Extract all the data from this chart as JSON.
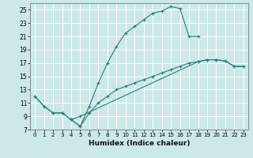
{
  "title": "",
  "xlabel": "Humidex (Indice chaleur)",
  "bg_color": "#cce8e8",
  "grid_color": "#ffffff",
  "line_color": "#2a7d78",
  "xlim": [
    -0.5,
    23.5
  ],
  "ylim": [
    7,
    26
  ],
  "xticks": [
    0,
    1,
    2,
    3,
    4,
    5,
    6,
    7,
    8,
    9,
    10,
    11,
    12,
    13,
    14,
    15,
    16,
    17,
    18,
    19,
    20,
    21,
    22,
    23
  ],
  "yticks": [
    7,
    9,
    11,
    13,
    15,
    17,
    19,
    21,
    23,
    25
  ],
  "line1_x": [
    0,
    1,
    2,
    3,
    4,
    5,
    6,
    7,
    8,
    9,
    10,
    11,
    12,
    13,
    14,
    15,
    16,
    17,
    18
  ],
  "line1_y": [
    12,
    10.5,
    9.5,
    9.5,
    8.5,
    7.5,
    10.5,
    14,
    17,
    19.5,
    21.5,
    22.5,
    23.5,
    24.5,
    24.8,
    25.5,
    25.2,
    21.0,
    21.0
  ],
  "line2_x": [
    4,
    5,
    6,
    7,
    8,
    9,
    10,
    11,
    12,
    13,
    14,
    15,
    16,
    17,
    18,
    19,
    20,
    21,
    22,
    23
  ],
  "line2_y": [
    8.5,
    7.5,
    9.5,
    11.0,
    12.0,
    13.0,
    13.5,
    14.0,
    14.5,
    15.0,
    15.5,
    16.0,
    16.5,
    17.0,
    17.2,
    17.5,
    17.5,
    17.3,
    16.5,
    16.5
  ],
  "line3_x": [
    0,
    1,
    2,
    3,
    4,
    5,
    18,
    19,
    20,
    21,
    22,
    23
  ],
  "line3_y": [
    12.0,
    10.5,
    9.5,
    9.5,
    8.5,
    9.0,
    17.2,
    17.5,
    17.5,
    17.3,
    16.5,
    16.5
  ]
}
